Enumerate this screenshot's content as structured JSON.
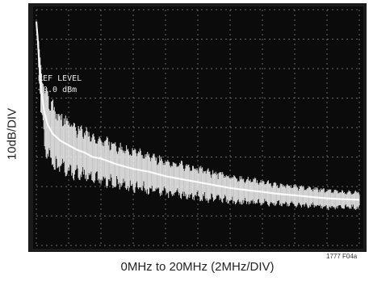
{
  "chart_data": {
    "type": "line",
    "title": "",
    "xlabel": "0MHz to 20MHz (2MHz/DIV)",
    "ylabel": "10dB/DIV",
    "screen_text": [
      "REF LEVEL",
      "+0.0 dBm"
    ],
    "figure_id": "1777 F04a",
    "xlim": [
      0,
      20
    ],
    "ylim_divisions": [
      0,
      8
    ],
    "x_unit": "MHz",
    "y_unit": "div",
    "grid": true,
    "series": [
      {
        "x": [
          0.0,
          0.1,
          0.2,
          0.3,
          0.5,
          0.7,
          1.0,
          1.5,
          2.0,
          2.5,
          3.0,
          3.5,
          4.0,
          5.0,
          6.0,
          7.0,
          8.0,
          9.0,
          10.0,
          11.0,
          12.0,
          13.0,
          14.0,
          15.0,
          16.0,
          17.0,
          18.0,
          19.0,
          20.0
        ],
        "y": [
          7.6,
          6.9,
          6.0,
          5.3,
          4.5,
          4.1,
          3.8,
          3.55,
          3.4,
          3.25,
          3.15,
          3.0,
          2.95,
          2.75,
          2.6,
          2.5,
          2.35,
          2.25,
          2.15,
          2.05,
          1.95,
          1.88,
          1.82,
          1.75,
          1.7,
          1.65,
          1.6,
          1.57,
          1.55
        ],
        "noise_spread_div": [
          0.0,
          0.4,
          0.9,
          1.2,
          1.4,
          1.5,
          1.5,
          1.4,
          1.3,
          1.2,
          1.15,
          1.1,
          1.05,
          1.0,
          0.95,
          0.9,
          0.85,
          0.8,
          0.75,
          0.7,
          0.65,
          0.6,
          0.55,
          0.5,
          0.5,
          0.45,
          0.45,
          0.4,
          0.4
        ]
      }
    ]
  }
}
